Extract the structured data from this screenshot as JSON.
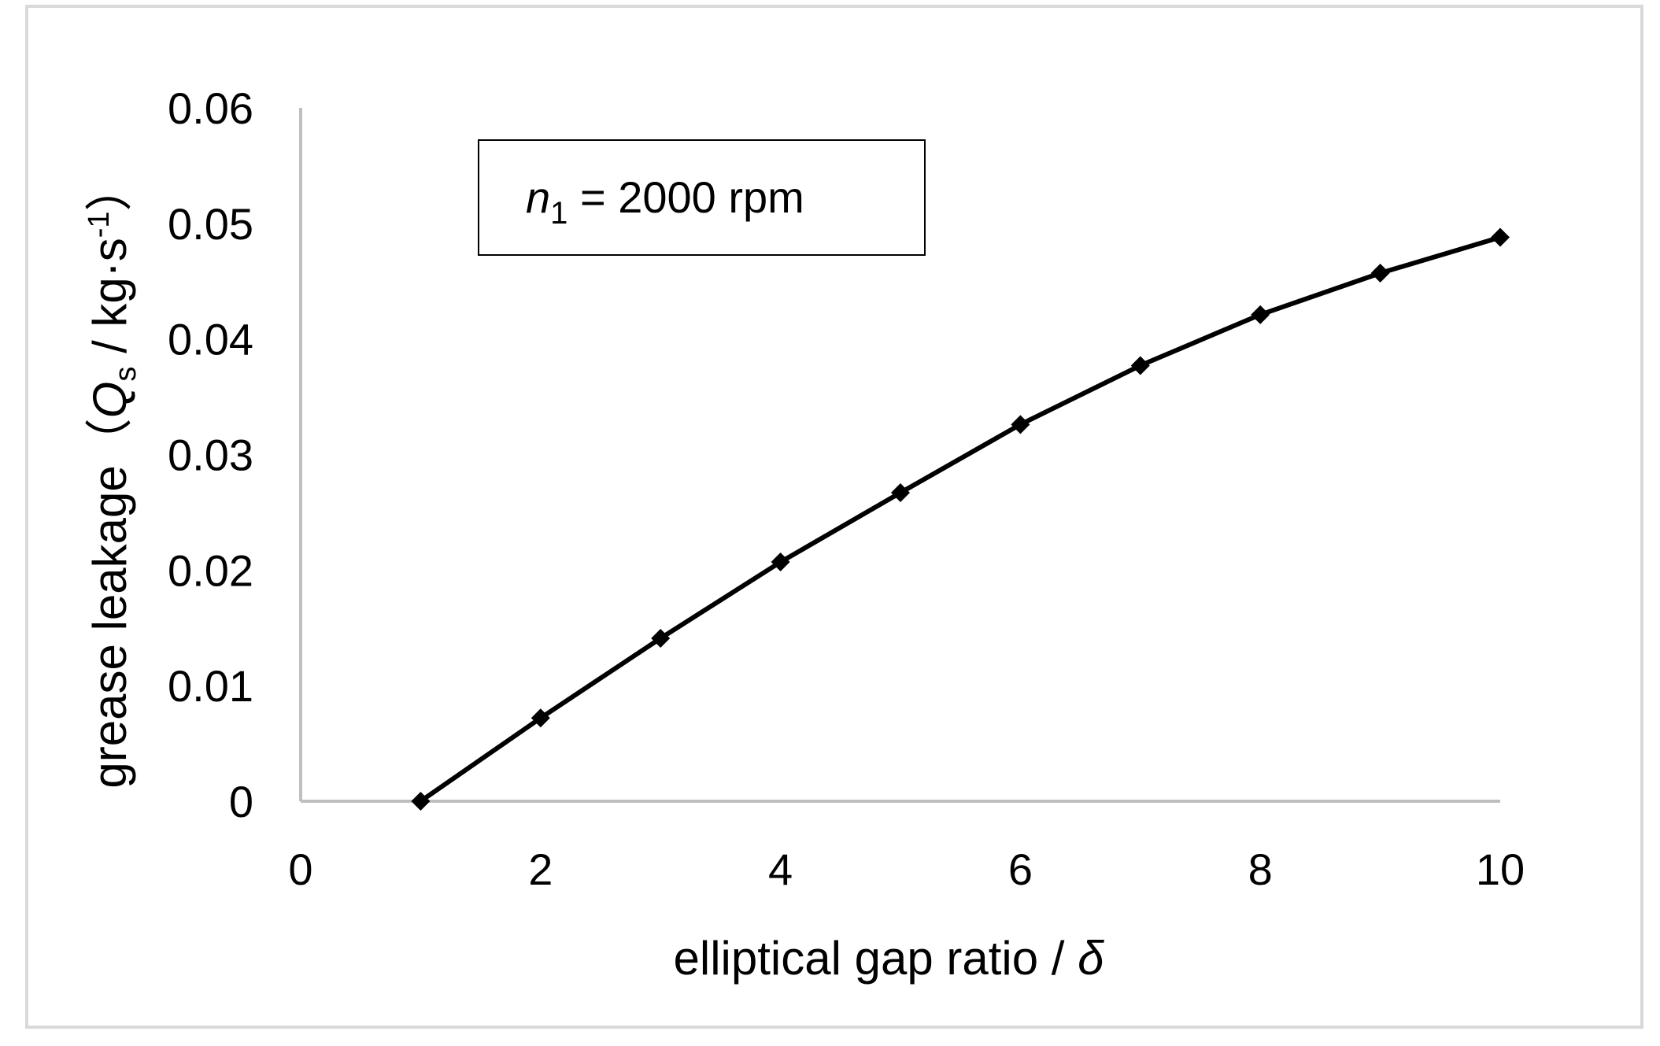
{
  "chart_data": {
    "type": "line",
    "title": "",
    "xlabel": {
      "text": "elliptical gap ratio / ",
      "symbol": "δ"
    },
    "ylabel": {
      "prefix": "grease leakage（",
      "symbol": "Q",
      "symbol_sub": "s",
      "unit": " / kg·s",
      "unit_sup": "-1",
      "suffix": "）"
    },
    "xlim": [
      0,
      10
    ],
    "ylim": [
      0,
      0.06
    ],
    "x_ticks": [
      "0",
      "2",
      "4",
      "6",
      "8",
      "10"
    ],
    "y_ticks": [
      "0",
      "0.01",
      "0.02",
      "0.03",
      "0.04",
      "0.05",
      "0.06"
    ],
    "grid": false,
    "legend": "none",
    "marker": "diamond",
    "series": [
      {
        "color": "#000000",
        "x": [
          1,
          2,
          3,
          4,
          5,
          6,
          7,
          8,
          9,
          10
        ],
        "y": [
          0.0,
          0.0072,
          0.0141,
          0.0207,
          0.0267,
          0.0326,
          0.0377,
          0.0421,
          0.0457,
          0.0488
        ]
      }
    ],
    "annotation": {
      "symbol": "n",
      "symbol_sub": "1",
      "text": " = 2000 rpm"
    },
    "colors": {
      "axis": "#bfbfbf",
      "frame": "#d9d9d9",
      "line": "#000000"
    }
  }
}
